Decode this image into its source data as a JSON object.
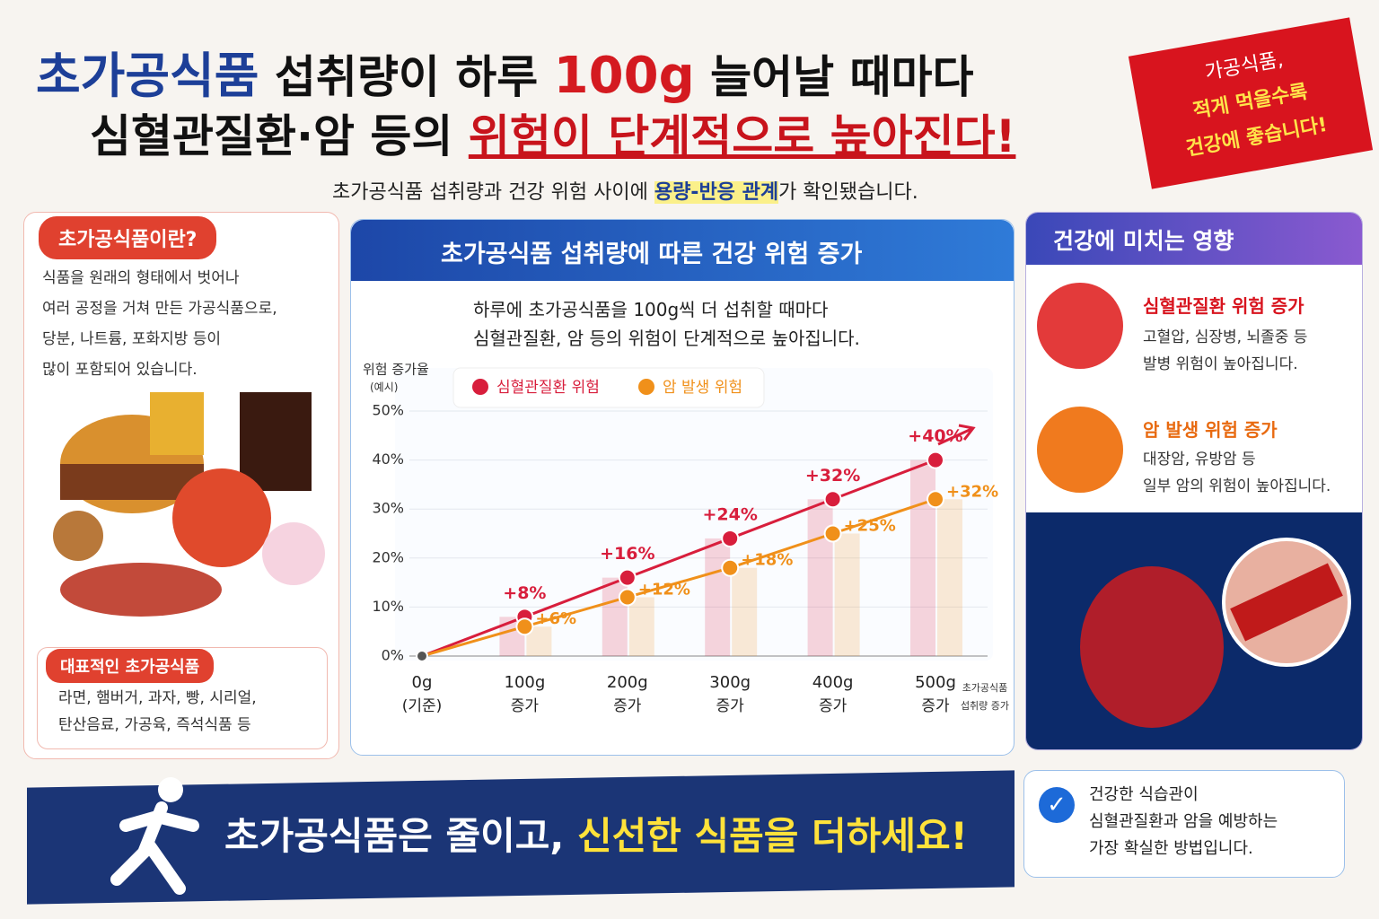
{
  "header": {
    "title1_a": "초가공식품",
    "title1_b": "섭취량이 하루",
    "title1_c": "100g",
    "title1_d": "늘어날 때마다",
    "title2_a": "심혈관질환·암 등의",
    "title2_b": "위험이 단계적으로 높아진다!",
    "subtitle_a": "초가공식품 섭취량과 건강 위험 사이에",
    "subtitle_b": "용량-반응 관계",
    "subtitle_c": "가 확인됐습니다."
  },
  "stamp": {
    "lines": [
      "가공식품,",
      "적게 먹을수록",
      "건강에 좋습니다!"
    ]
  },
  "left_panel": {
    "title": "초가공식품이란?",
    "body": [
      "식품을 원래의 형태에서 벗어나",
      "여러 공정을 거쳐 만든 가공식품으로,",
      "당분, 나트륨, 포화지방 등이",
      "많이 포함되어 있습니다."
    ],
    "examples_title": "대표적인 초가공식품",
    "examples": [
      "라면, 햄버거, 과자, 빵, 시리얼,",
      "탄산음료, 가공육, 즉석식품 등"
    ]
  },
  "chart_panel": {
    "title": "초가공식품 섭취량에 따른 건강 위험 증가",
    "desc": [
      "하루에 초가공식품을 100g씩 더 섭취할 때마다",
      "심혈관질환, 암 등의 위험이 단계적으로 높아집니다."
    ]
  },
  "chart_data": {
    "type": "line",
    "y_label": "위험 증가율",
    "y_label_note": "(예시)",
    "x_label": [
      "초가공식품",
      "섭취량 증가"
    ],
    "categories": [
      "0g",
      "100g",
      "200g",
      "300g",
      "400g",
      "500g"
    ],
    "category_notes": [
      "(기준)",
      "증가",
      "증가",
      "증가",
      "증가",
      "증가"
    ],
    "series": [
      {
        "name": "심혈관질환 위험",
        "color": "#d81e3c",
        "values": [
          0,
          8,
          16,
          24,
          32,
          40
        ],
        "value_labels": [
          null,
          "+8%",
          "+16%",
          "+24%",
          "+32%",
          "+40%"
        ]
      },
      {
        "name": "암 발생 위험",
        "color": "#f0901a",
        "values": [
          0,
          6,
          12,
          18,
          25,
          32
        ],
        "value_labels": [
          null,
          "+6%",
          "+12%",
          "+18%",
          "+25%",
          "+32%"
        ]
      }
    ],
    "ylim": [
      0,
      50
    ],
    "yticks": [
      {
        "value": 0,
        "label": "0%"
      },
      {
        "value": 10,
        "label": "10%"
      },
      {
        "value": 20,
        "label": "20%"
      },
      {
        "value": 30,
        "label": "30%"
      },
      {
        "value": 40,
        "label": "40%"
      },
      {
        "value": 50,
        "label": "50%"
      }
    ],
    "grid": true
  },
  "right_panel": {
    "title": "건강에 미치는 영향",
    "items": [
      {
        "title": "심혈관질환 위험 증가",
        "lines": [
          "고혈압, 심장병, 뇌졸중 등",
          "발병 위험이 높아집니다."
        ]
      },
      {
        "title": "암 발생 위험 증가",
        "lines": [
          "대장암, 유방암 등",
          "일부 암의 위험이 높아집니다."
        ]
      }
    ]
  },
  "footer": {
    "slogan_a": "초가공식품은 줄이고,",
    "slogan_b": "신선한 식품을 더하세요!",
    "note": [
      "건강한 식습관이",
      "심혈관질환과 암을 예방하는",
      "가장 확실한 방법입니다."
    ]
  }
}
